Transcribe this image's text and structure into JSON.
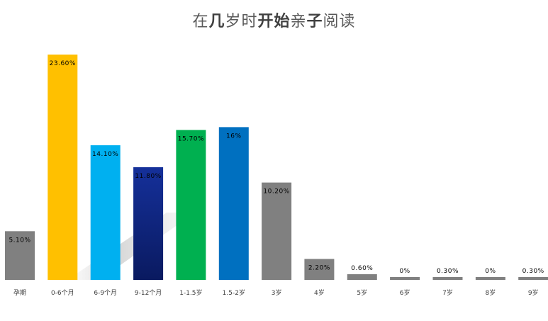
{
  "title": "在几岁时开始亲子阅读",
  "title_bold_words": [
    "几",
    "开始",
    "子"
  ],
  "chart_data": {
    "type": "bar",
    "title": "在几岁时开始亲子阅读",
    "xlabel": "",
    "ylabel": "",
    "ylim": [
      0,
      24
    ],
    "grid": false,
    "legend": "none",
    "categories": [
      "孕期",
      "0-6个月",
      "6-9个月",
      "9-12个月",
      "1-1.5岁",
      "1.5-2岁",
      "3岁",
      "4岁",
      "5岁",
      "6岁",
      "7岁",
      "8岁",
      "9岁"
    ],
    "values": [
      5.1,
      23.6,
      14.1,
      11.8,
      15.7,
      16,
      10.2,
      2.2,
      0.6,
      0,
      0.3,
      0,
      0.3
    ],
    "data_labels": [
      "5.10%",
      "23.60%",
      "14.10%",
      "11.80%",
      "15.70%",
      "16%",
      "10.20%",
      "2.20%",
      "0.60%",
      "0%",
      "0.30%",
      "0%",
      "0.30%"
    ],
    "colors": [
      "#808080",
      "#ffc000",
      "#00b0f0",
      "#0f2583",
      "#00b050",
      "#0070c0",
      "#808080",
      "#808080",
      "#808080",
      "#808080",
      "#808080",
      "#808080",
      "#808080"
    ]
  }
}
